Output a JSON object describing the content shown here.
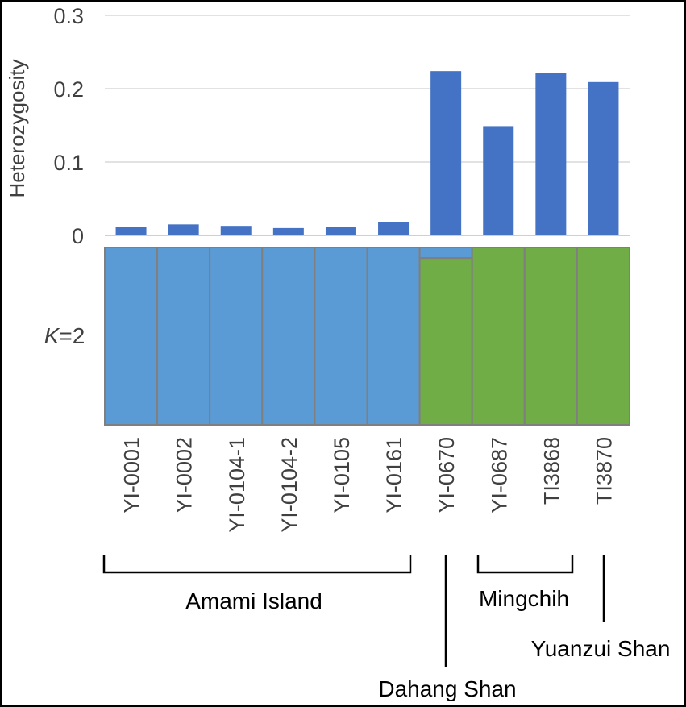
{
  "chart_data": [
    {
      "type": "bar",
      "ylabel": "Heterozygosity",
      "ylim": [
        0,
        0.3
      ],
      "yticks": [
        "0",
        "0.1",
        "0.2",
        "0.3"
      ],
      "categories": [
        "YI-0001",
        "YI-0002",
        "YI-0104-1",
        "YI-0104-2",
        "YI-0105",
        "YI-0161",
        "YI-0670",
        "YI-0687",
        "TI3868",
        "TI3870"
      ],
      "values": [
        0.012,
        0.015,
        0.013,
        0.01,
        0.012,
        0.018,
        0.224,
        0.149,
        0.221,
        0.209
      ],
      "bar_color": "#4472C4",
      "grid": true
    },
    {
      "type": "bar",
      "stacked": true,
      "label_prefix": "K",
      "label_suffix": "=2",
      "categories": [
        "YI-0001",
        "YI-0002",
        "YI-0104-1",
        "YI-0104-2",
        "YI-0105",
        "YI-0161",
        "YI-0670",
        "YI-0687",
        "TI3868",
        "TI3870"
      ],
      "series": [
        {
          "values": [
            1.0,
            1.0,
            1.0,
            1.0,
            1.0,
            1.0,
            0.06,
            0.0,
            0.0,
            0.0
          ],
          "color": "#5B9BD5"
        },
        {
          "values": [
            0.0,
            0.0,
            0.0,
            0.0,
            0.0,
            0.0,
            0.94,
            1.0,
            1.0,
            1.0
          ],
          "color": "#70AD47"
        }
      ]
    }
  ],
  "groups": [
    {
      "name": "Amami Island"
    },
    {
      "name": "Dahang Shan"
    },
    {
      "name": "Mingchih"
    },
    {
      "name": "Yuanzui Shan"
    }
  ]
}
